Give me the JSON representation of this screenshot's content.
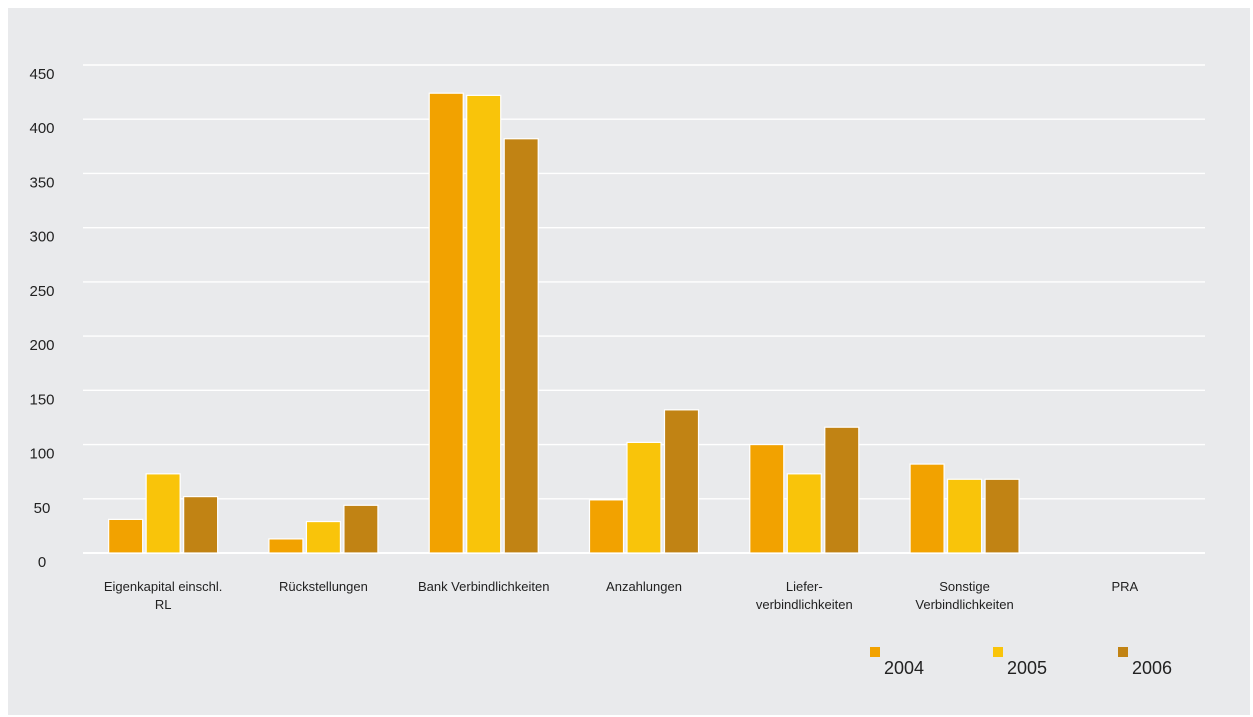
{
  "chart_data": {
    "type": "bar",
    "title": "",
    "xlabel": "",
    "ylabel": "",
    "ylim": [
      0,
      450
    ],
    "yticks": [
      0,
      50,
      100,
      150,
      200,
      250,
      300,
      350,
      400,
      450
    ],
    "grid": true,
    "legend_position": "bottom-right",
    "categories": [
      [
        "Eigenkapital einschl.",
        "RL"
      ],
      [
        "Rückstellungen"
      ],
      [
        "Bank Verbindlichkeiten"
      ],
      [
        "Anzahlungen"
      ],
      [
        "Liefer-",
        "verbindlichkeiten"
      ],
      [
        "Sonstige",
        "Verbindlichkeiten"
      ],
      [
        "PRA"
      ]
    ],
    "series": [
      {
        "name": "2004",
        "color": "#f2a200",
        "values": [
          31,
          13,
          424,
          49,
          100,
          82,
          0
        ]
      },
      {
        "name": "2005",
        "color": "#f9c40a",
        "values": [
          73,
          29,
          422,
          102,
          73,
          68,
          0
        ]
      },
      {
        "name": "2006",
        "color": "#c18314",
        "values": [
          52,
          44,
          382,
          132,
          116,
          68,
          0
        ]
      }
    ]
  }
}
